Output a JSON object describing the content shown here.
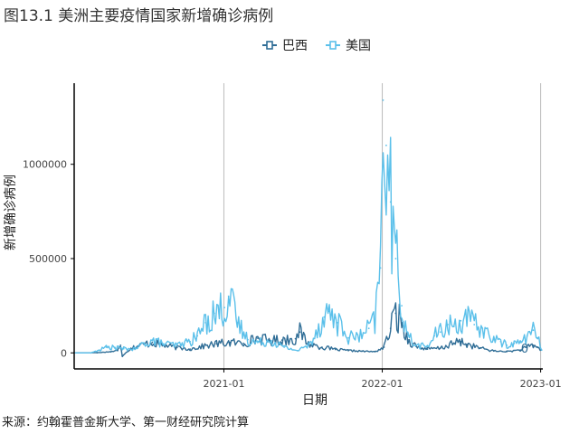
{
  "figure": {
    "title": "图13.1 美洲主要疫情国家新增确诊病例",
    "source": "来源：约翰霍普金斯大学、第一财经研究院计算"
  },
  "chart_data": {
    "type": "line",
    "title": "图13.1 美洲主要疫情国家新增确诊病例",
    "xlabel": "日期",
    "ylabel": "新增确诊病例",
    "x_ticks": [
      "2021-01",
      "2022-01",
      "2023-01"
    ],
    "y_ticks": [
      0,
      500000,
      1000000
    ],
    "y_tick_labels": [
      "0",
      "500000",
      "1000000"
    ],
    "xlim": [
      "2020-01-22",
      "2023-01-06"
    ],
    "ylim": [
      -85000,
      1430000
    ],
    "grid": "vertical",
    "legend_position": "top",
    "end_annotation": "0",
    "colors": {
      "巴西": "#2f6d96",
      "美国": "#5bc0ea"
    },
    "series": [
      {
        "name": "巴西",
        "x": [
          "2020-01-22",
          "2020-03-15",
          "2020-04-15",
          "2020-05-01",
          "2020-05-08",
          "2020-05-12",
          "2020-06-01",
          "2020-07-01",
          "2020-07-20",
          "2020-08-15",
          "2020-09-15",
          "2020-10-15",
          "2020-11-15",
          "2020-12-15",
          "2021-01-15",
          "2021-02-15",
          "2021-03-20",
          "2021-04-15",
          "2021-05-15",
          "2021-06-15",
          "2021-06-25",
          "2021-07-15",
          "2021-08-15",
          "2021-09-15",
          "2021-10-15",
          "2021-11-15",
          "2021-12-15",
          "2022-01-05",
          "2022-01-20",
          "2022-02-01",
          "2022-02-15",
          "2022-03-01",
          "2022-03-20",
          "2022-04-15",
          "2022-05-15",
          "2022-06-15",
          "2022-07-01",
          "2022-07-15",
          "2022-08-15",
          "2022-09-15",
          "2022-10-15",
          "2022-11-15",
          "2022-12-01",
          "2022-12-15",
          "2022-12-25",
          "2023-01-03"
        ],
        "values": [
          0,
          1000,
          6000,
          12000,
          40000,
          -15000,
          25000,
          45000,
          55000,
          40000,
          28000,
          20000,
          35000,
          48000,
          55000,
          50000,
          78000,
          65000,
          68000,
          75000,
          110000,
          48000,
          30000,
          18000,
          12000,
          9000,
          6000,
          30000,
          130000,
          210000,
          160000,
          70000,
          35000,
          20000,
          25000,
          50000,
          60000,
          45000,
          25000,
          10000,
          7000,
          15000,
          30000,
          40000,
          28000,
          15000
        ]
      },
      {
        "name": "美国",
        "x": [
          "2020-01-22",
          "2020-03-01",
          "2020-03-20",
          "2020-04-05",
          "2020-04-25",
          "2020-05-15",
          "2020-06-10",
          "2020-07-01",
          "2020-07-20",
          "2020-08-15",
          "2020-09-15",
          "2020-10-15",
          "2020-11-01",
          "2020-11-20",
          "2020-12-10",
          "2021-01-02",
          "2021-01-12",
          "2021-02-01",
          "2021-02-25",
          "2021-03-20",
          "2021-04-20",
          "2021-05-20",
          "2021-06-20",
          "2021-07-15",
          "2021-08-01",
          "2021-08-20",
          "2021-09-01",
          "2021-09-20",
          "2021-10-15",
          "2021-11-15",
          "2021-12-01",
          "2021-12-15",
          "2021-12-28",
          "2022-01-03",
          "2022-01-10",
          "2022-01-20",
          "2022-02-01",
          "2022-02-15",
          "2022-03-01",
          "2022-03-20",
          "2022-04-15",
          "2022-05-01",
          "2022-05-15",
          "2022-06-01",
          "2022-06-15",
          "2022-07-01",
          "2022-07-15",
          "2022-08-01",
          "2022-08-20",
          "2022-09-15",
          "2022-10-01",
          "2022-10-15",
          "2022-11-01",
          "2022-11-15",
          "2022-12-01",
          "2022-12-15",
          "2022-12-25",
          "2023-01-03"
        ],
        "values": [
          0,
          0,
          15000,
          30000,
          28000,
          22000,
          20000,
          50000,
          65000,
          48000,
          40000,
          60000,
          90000,
          160000,
          210000,
          240000,
          300000,
          160000,
          70000,
          55000,
          65000,
          30000,
          12000,
          40000,
          110000,
          190000,
          220000,
          160000,
          80000,
          90000,
          130000,
          170000,
          450000,
          1340000,
          1100000,
          800000,
          500000,
          250000,
          90000,
          40000,
          35000,
          90000,
          110000,
          150000,
          140000,
          170000,
          180000,
          150000,
          130000,
          70000,
          60000,
          40000,
          50000,
          55000,
          90000,
          120000,
          80000,
          15000
        ]
      }
    ]
  }
}
